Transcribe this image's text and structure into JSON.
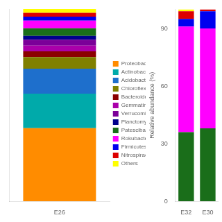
{
  "chart_data": [
    {
      "type": "bar",
      "stacked": true,
      "categories": [
        "E26"
      ],
      "series": [
        {
          "name": "Proteobacteria",
          "color": "#FF8C00",
          "values": [
            38
          ]
        },
        {
          "name": "Actinobacteria",
          "color": "#00AAAA",
          "values": [
            18
          ]
        },
        {
          "name": "Acidobacteria*",
          "color": "#1E6FCC",
          "values": [
            13
          ]
        },
        {
          "name": "Chloroflexi",
          "color": "#808000",
          "values": [
            6
          ]
        },
        {
          "name": "Bacteroidetes",
          "color": "#8B0000",
          "values": [
            3
          ]
        },
        {
          "name": "Gemmatimonadetes",
          "color": "#AA00AA",
          "values": [
            3
          ]
        },
        {
          "name": "Verrucomicrobia",
          "color": "#7B0099",
          "values": [
            3
          ]
        },
        {
          "name": "Planctomycetes",
          "color": "#00008B",
          "values": [
            2
          ]
        },
        {
          "name": "Patescibacteria",
          "color": "#1A6E1A",
          "values": [
            4
          ]
        },
        {
          "name": "Rokubacteria*",
          "color": "#FF00FF",
          "values": [
            4
          ]
        },
        {
          "name": "Firmicutes*",
          "color": "#0000EE",
          "values": [
            2
          ]
        },
        {
          "name": "Nitrospirae*",
          "color": "#DD0000",
          "values": [
            2
          ]
        },
        {
          "name": "Others",
          "color": "#FFFF00",
          "values": [
            2
          ]
        }
      ],
      "ylim": [
        0,
        100
      ],
      "tick_labels": "x",
      "grid": false,
      "legend": "right"
    },
    {
      "type": "bar",
      "stacked": true,
      "categories": [
        "E32",
        "E30"
      ],
      "series": [
        {
          "color": "#FF8C00",
          "values": [
            0,
            0
          ]
        },
        {
          "color": "#00AAAA",
          "values": [
            0,
            0
          ]
        },
        {
          "color": "#1E6FCC",
          "values": [
            0,
            0
          ]
        },
        {
          "color": "#808000",
          "values": [
            0,
            0
          ]
        },
        {
          "color": "#8B0000",
          "values": [
            0,
            0
          ]
        },
        {
          "color": "#AA00AA",
          "values": [
            0,
            0
          ]
        },
        {
          "color": "#7B0099",
          "values": [
            0,
            0
          ]
        },
        {
          "color": "#00008B",
          "values": [
            0,
            0
          ]
        },
        {
          "color": "#1A6E1A",
          "values": [
            36,
            38
          ]
        },
        {
          "color": "#FF00FF",
          "values": [
            55,
            52
          ]
        },
        {
          "color": "#0000EE",
          "values": [
            4,
            9
          ]
        },
        {
          "color": "#DD0000",
          "values": [
            4,
            1
          ]
        },
        {
          "color": "#FFFF00",
          "values": [
            1,
            0
          ]
        }
      ],
      "ylabel": "Relative abundance (%)",
      "ylim": [
        0,
        100
      ],
      "yticks": [
        0,
        30,
        60,
        90
      ],
      "grid": false
    }
  ]
}
